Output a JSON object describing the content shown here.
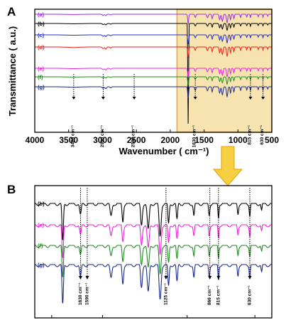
{
  "figure": {
    "panel_a_letter": "A",
    "panel_b_letter": "B"
  },
  "colors": {
    "a": "#9b30d8",
    "b": "#000000",
    "c": "#1f2fd0",
    "d": "#e8231b",
    "e": "#e826d8",
    "f": "#1e8c1e",
    "g": "#1d2a8a",
    "highlight_fill": "#f7e3b0",
    "highlight_stroke": "#f0a818",
    "arrow_fill": "#f7cf43"
  },
  "chart_data": [
    {
      "type": "line",
      "panel": "A",
      "xlabel": "Wavenumber ( cm⁻¹)",
      "ylabel": "Transmittance ( a.u.)",
      "xlim": [
        4000,
        500
      ],
      "x_ticks": [
        4000,
        3500,
        3000,
        2500,
        2000,
        1500,
        1000,
        500
      ],
      "highlight_range": [
        1900,
        500
      ],
      "series": [
        {
          "name": "(a)",
          "color_key": "a"
        },
        {
          "name": "(b)",
          "color_key": "b"
        },
        {
          "name": "(c)",
          "color_key": "c"
        },
        {
          "name": "(d)",
          "color_key": "d"
        },
        {
          "name": "(e)",
          "color_key": "e"
        },
        {
          "name": "(f)",
          "color_key": "f"
        },
        {
          "name": "(g)",
          "color_key": "g"
        }
      ],
      "annotations": [
        {
          "x": 3425,
          "label": "3425 cm⁻¹"
        },
        {
          "x": 2990,
          "label": "2990 cm⁻¹"
        },
        {
          "x": 2532,
          "label": "2532 cm⁻¹"
        },
        {
          "x": 1630,
          "label": "1630 cm⁻¹"
        },
        {
          "x": 815,
          "label": "815 cm⁻¹"
        },
        {
          "x": 630,
          "label": "630 cm⁻¹"
        }
      ]
    },
    {
      "type": "line",
      "panel": "B",
      "xlim": [
        1900,
        500
      ],
      "series": [
        {
          "name": "(b)",
          "color_key": "b"
        },
        {
          "name": "(e)",
          "color_key": "e"
        },
        {
          "name": "(f)",
          "color_key": "f"
        },
        {
          "name": "(g)",
          "color_key": "g"
        }
      ],
      "annotations": [
        {
          "x": 1630,
          "label": "1630 cm⁻¹"
        },
        {
          "x": 1590,
          "label": "1590 cm⁻¹"
        },
        {
          "x": 1125,
          "label": "1125 cm⁻¹"
        },
        {
          "x": 866,
          "label": "866 cm⁻¹"
        },
        {
          "x": 815,
          "label": "815 cm⁻¹"
        },
        {
          "x": 630,
          "label": "630 cm⁻¹"
        }
      ]
    }
  ]
}
